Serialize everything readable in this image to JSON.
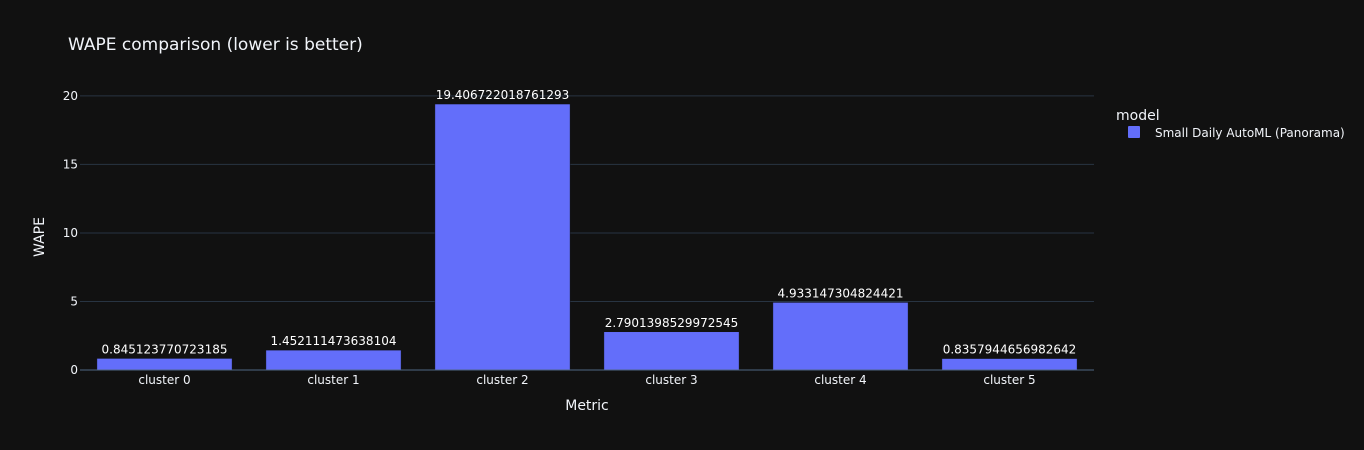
{
  "chart_data": {
    "type": "bar",
    "title": "WAPE comparison (lower is better)",
    "xlabel": "Metric",
    "ylabel": "WAPE",
    "categories": [
      "cluster 0",
      "cluster 1",
      "cluster 2",
      "cluster 3",
      "cluster 4",
      "cluster 5"
    ],
    "series": [
      {
        "name": "Small Daily AutoML (Panorama)",
        "color": "#636efa",
        "values": [
          0.845123770723185,
          1.452111473638104,
          19.406722018761293,
          2.7901398529972545,
          4.933147304824421,
          0.8357944656982642
        ],
        "labels": [
          "0.845123770723185",
          "1.452111473638104",
          "19.406722018761293",
          "2.7901398529972545",
          "4.933147304824421",
          "0.8357944656982642"
        ]
      }
    ],
    "ylim": [
      0,
      20.43
    ],
    "yticks": [
      0,
      5,
      10,
      15,
      20
    ],
    "grid": true,
    "legend": {
      "title": "model",
      "placement": "top-right"
    },
    "colors": {
      "background": "#111111",
      "grid": "#283442",
      "text": "#f2f5fa"
    }
  }
}
